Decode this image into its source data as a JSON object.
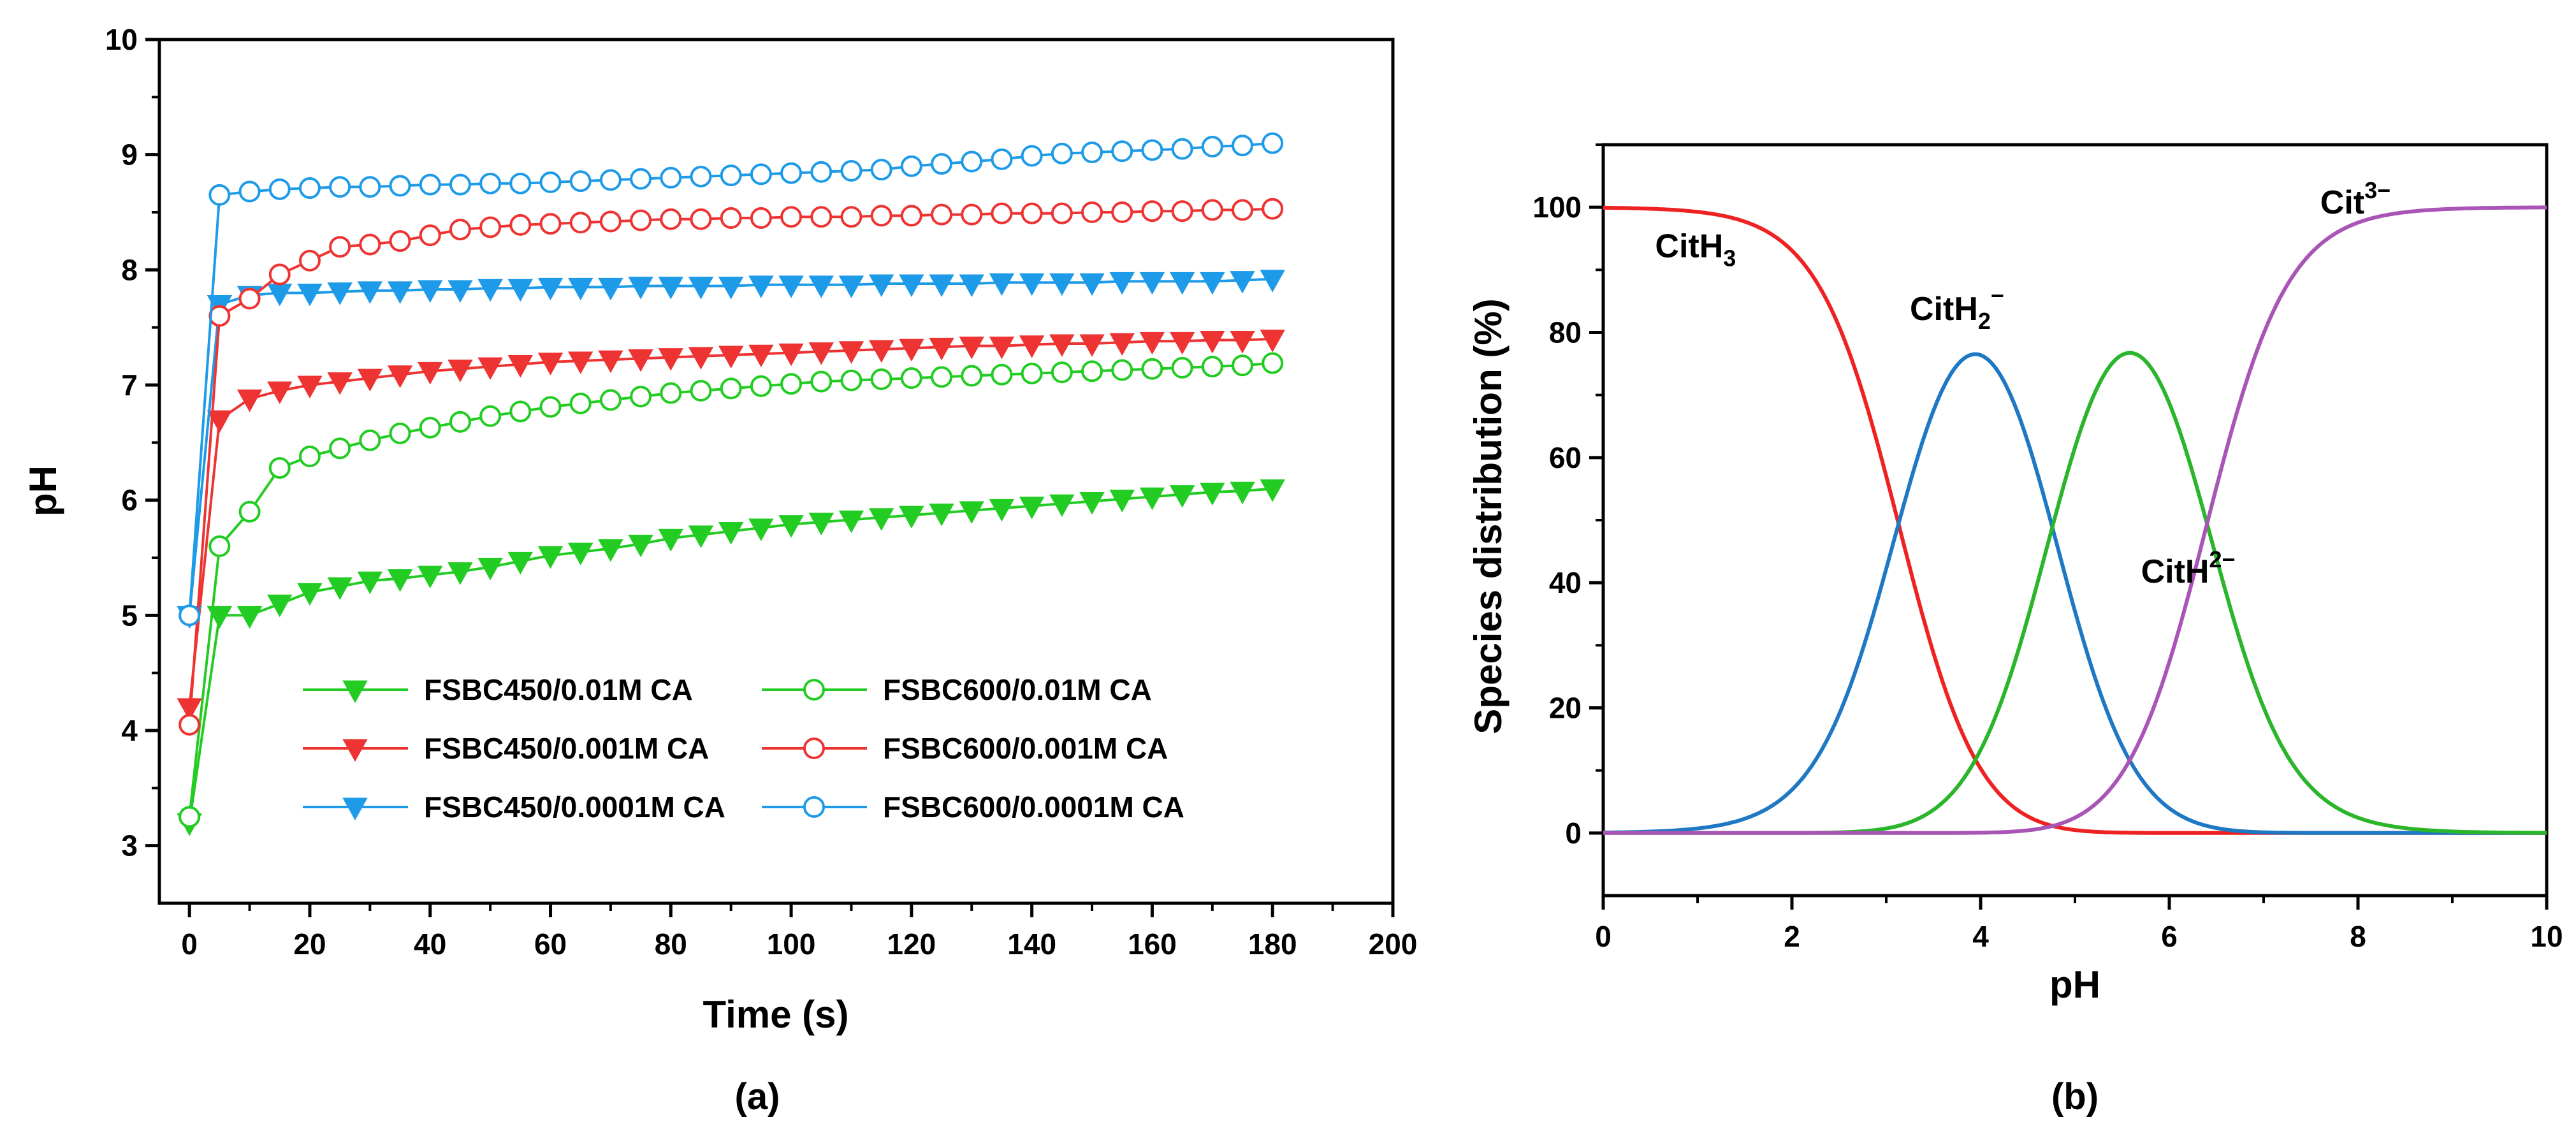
{
  "chart_data": [
    {
      "type": "line",
      "panel_label": "(a)",
      "xlabel": "Time (s)",
      "ylabel": "pH",
      "xlim": [
        -5,
        200
      ],
      "ylim": [
        2.5,
        10
      ],
      "xticks": [
        0,
        20,
        40,
        60,
        80,
        100,
        120,
        140,
        160,
        180,
        200
      ],
      "yticks": [
        3,
        4,
        5,
        6,
        7,
        8,
        9,
        10
      ],
      "legend_position": "lower-center",
      "x": [
        0,
        5,
        10,
        15,
        20,
        25,
        30,
        35,
        40,
        45,
        50,
        55,
        60,
        65,
        70,
        75,
        80,
        85,
        90,
        95,
        100,
        105,
        110,
        115,
        120,
        125,
        130,
        135,
        140,
        145,
        150,
        155,
        160,
        165,
        170,
        175,
        180
      ],
      "series": [
        {
          "name": "FSBC450/0.01M CA",
          "color": "#22cc22",
          "marker": "filled-down-triangle",
          "values": [
            3.2,
            5.0,
            5.0,
            5.1,
            5.2,
            5.25,
            5.3,
            5.32,
            5.35,
            5.38,
            5.42,
            5.47,
            5.52,
            5.55,
            5.58,
            5.62,
            5.67,
            5.7,
            5.73,
            5.76,
            5.79,
            5.81,
            5.83,
            5.85,
            5.87,
            5.89,
            5.91,
            5.93,
            5.95,
            5.97,
            5.99,
            6.01,
            6.03,
            6.05,
            6.07,
            6.08,
            6.1
          ]
        },
        {
          "name": "FSBC450/0.001M CA",
          "color": "#ee3333",
          "marker": "filled-down-triangle",
          "values": [
            4.2,
            6.7,
            6.88,
            6.95,
            7.0,
            7.03,
            7.06,
            7.09,
            7.12,
            7.14,
            7.16,
            7.18,
            7.2,
            7.21,
            7.22,
            7.23,
            7.24,
            7.25,
            7.26,
            7.27,
            7.28,
            7.29,
            7.3,
            7.31,
            7.32,
            7.33,
            7.34,
            7.34,
            7.35,
            7.36,
            7.36,
            7.37,
            7.38,
            7.38,
            7.39,
            7.39,
            7.4
          ]
        },
        {
          "name": "FSBC450/0.0001M CA",
          "color": "#1e9be8",
          "marker": "filled-down-triangle",
          "values": [
            5.0,
            7.7,
            7.78,
            7.8,
            7.8,
            7.81,
            7.82,
            7.82,
            7.83,
            7.83,
            7.84,
            7.84,
            7.85,
            7.85,
            7.85,
            7.86,
            7.86,
            7.86,
            7.86,
            7.87,
            7.87,
            7.87,
            7.87,
            7.88,
            7.88,
            7.88,
            7.88,
            7.89,
            7.89,
            7.89,
            7.89,
            7.9,
            7.9,
            7.9,
            7.9,
            7.91,
            7.92
          ]
        },
        {
          "name": "FSBC600/0.01M CA",
          "color": "#22cc22",
          "marker": "open-circle",
          "values": [
            3.25,
            5.6,
            5.9,
            6.28,
            6.38,
            6.45,
            6.52,
            6.58,
            6.63,
            6.68,
            6.73,
            6.77,
            6.81,
            6.84,
            6.87,
            6.9,
            6.93,
            6.95,
            6.97,
            6.99,
            7.01,
            7.03,
            7.04,
            7.05,
            7.06,
            7.07,
            7.08,
            7.09,
            7.1,
            7.11,
            7.12,
            7.13,
            7.14,
            7.15,
            7.16,
            7.17,
            7.19
          ]
        },
        {
          "name": "FSBC600/0.001M CA",
          "color": "#ee3333",
          "marker": "open-circle",
          "values": [
            4.05,
            7.6,
            7.75,
            7.96,
            8.08,
            8.2,
            8.22,
            8.25,
            8.3,
            8.35,
            8.37,
            8.39,
            8.4,
            8.41,
            8.42,
            8.43,
            8.44,
            8.44,
            8.45,
            8.45,
            8.46,
            8.46,
            8.46,
            8.47,
            8.47,
            8.48,
            8.48,
            8.49,
            8.49,
            8.49,
            8.5,
            8.5,
            8.51,
            8.51,
            8.52,
            8.52,
            8.53
          ]
        },
        {
          "name": "FSBC600/0.0001M CA",
          "color": "#1e9be8",
          "marker": "open-circle",
          "values": [
            5.0,
            8.65,
            8.68,
            8.7,
            8.71,
            8.72,
            8.72,
            8.73,
            8.74,
            8.74,
            8.75,
            8.75,
            8.76,
            8.77,
            8.78,
            8.79,
            8.8,
            8.81,
            8.82,
            8.83,
            8.84,
            8.85,
            8.86,
            8.87,
            8.9,
            8.92,
            8.94,
            8.96,
            8.99,
            9.01,
            9.02,
            9.03,
            9.04,
            9.05,
            9.07,
            9.08,
            9.1
          ]
        }
      ]
    },
    {
      "type": "line",
      "panel_label": "(b)",
      "xlabel": "pH",
      "ylabel": "Species distribution (%)",
      "xlim": [
        0,
        10
      ],
      "ylim": [
        -10,
        110
      ],
      "xticks": [
        0,
        2,
        4,
        6,
        8,
        10
      ],
      "yticks": [
        0,
        20,
        40,
        60,
        80,
        100
      ],
      "pKa": [
        3.13,
        4.76,
        6.4
      ],
      "series": [
        {
          "name": "CitH3",
          "label_main": "CitH",
          "label_sub": "3",
          "color": "#ee2222",
          "curve_index": 0,
          "label_at": [
            0.55,
            92
          ]
        },
        {
          "name": "CitH2−",
          "label_main": "CitH",
          "label_sub": "2",
          "label_sup": "−",
          "color": "#1f78c4",
          "curve_index": 1,
          "label_at": [
            3.25,
            82
          ]
        },
        {
          "name": "CitH2−",
          "label_main": "CitH",
          "label_sup": "2−",
          "color": "#2ab52a",
          "curve_index": 2,
          "label_at": [
            5.7,
            40
          ]
        },
        {
          "name": "Cit3−",
          "label_main": "Cit",
          "label_sup": "3−",
          "color": "#a855b5",
          "curve_index": 3,
          "label_at": [
            7.6,
            99
          ]
        }
      ]
    }
  ]
}
